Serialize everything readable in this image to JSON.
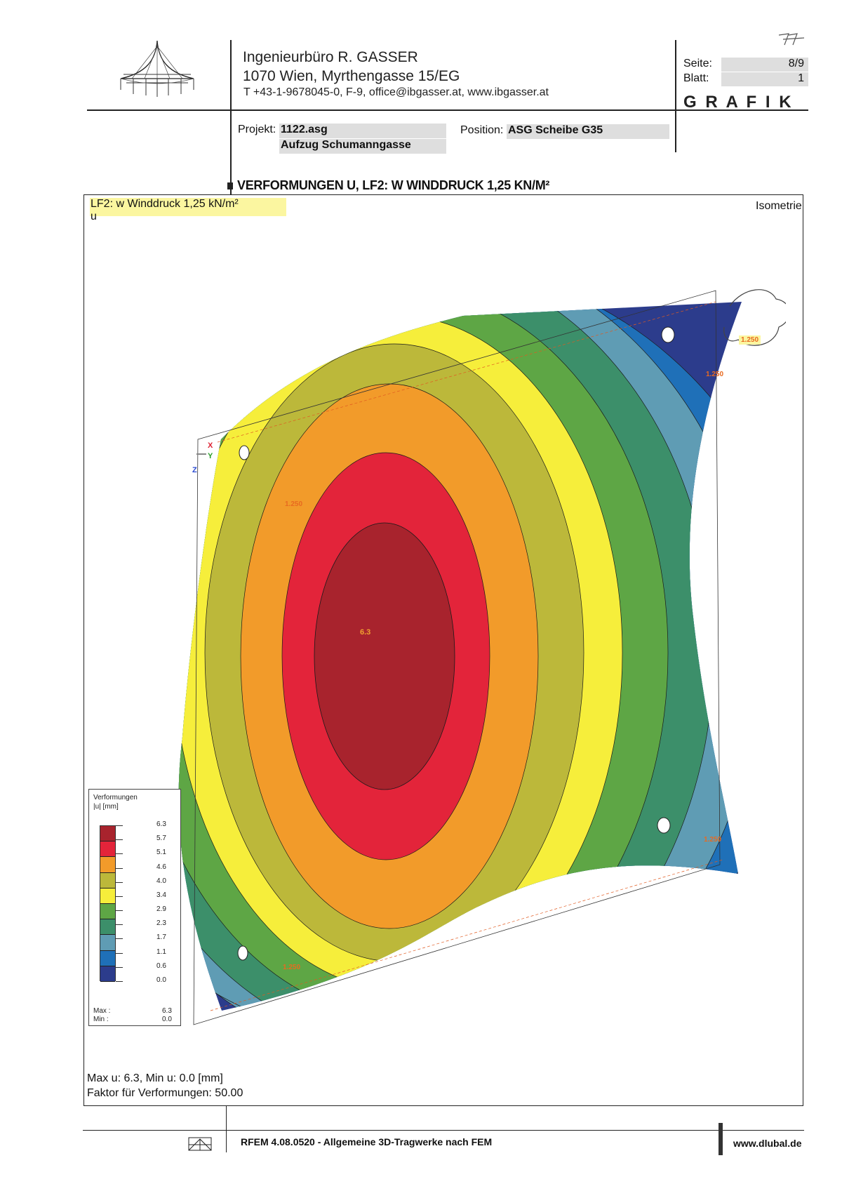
{
  "header": {
    "company_line1": "Ingenieurbüro R. GASSER",
    "company_line2": "1070 Wien, Myrthengasse 15/EG",
    "company_line3": "T +43-1-9678045-0,  F-9,  office@ibgasser.at,  www.ibgasser.at",
    "seite_label": "Seite:",
    "seite_value": "8/9",
    "blatt_label": "Blatt:",
    "blatt_value": "1",
    "section": "G R A F I K",
    "projekt_label": "Projekt:",
    "projekt_value1": "1122.asg",
    "projekt_value2": "Aufzug Schumanngasse",
    "position_label": "Position:",
    "position_value": "ASG Scheibe G35"
  },
  "figure": {
    "heading": "VERFORMUNGEN U, LF2: W WINDDRUCK 1,25 KN/M²",
    "loadcase": "LF2: w Winddruck 1,25 kN/m²",
    "variable": "u",
    "view": "Isometrie",
    "max_label": "6.3",
    "load_label": "1.250",
    "axis_x": "X",
    "axis_y": "Y",
    "axis_z": "Z",
    "summary1": "Max u: 6.3, Min u: 0.0 [mm]",
    "summary2": "Faktor für Verformungen: 50.00"
  },
  "legend": {
    "title1": "Verformungen",
    "title2": "|u| [mm]",
    "values": [
      "6.3",
      "5.7",
      "5.1",
      "4.6",
      "4.0",
      "3.4",
      "2.9",
      "2.3",
      "1.7",
      "1.1",
      "0.6",
      "0.0"
    ],
    "colors": [
      "#a8232d",
      "#e3243a",
      "#f29b2a",
      "#bcb83a",
      "#f6ee3b",
      "#5ea645",
      "#3c8f6a",
      "#5f9cb4",
      "#1f70b8",
      "#2c3c8c"
    ],
    "max_label": "Max :",
    "max_value": "6.3",
    "min_label": "Min :",
    "min_value": "0.0"
  },
  "footer": {
    "software": "RFEM 4.08.0520 - Allgemeine 3D-Tragwerke nach FEM",
    "website": "www.dlubal.de"
  }
}
